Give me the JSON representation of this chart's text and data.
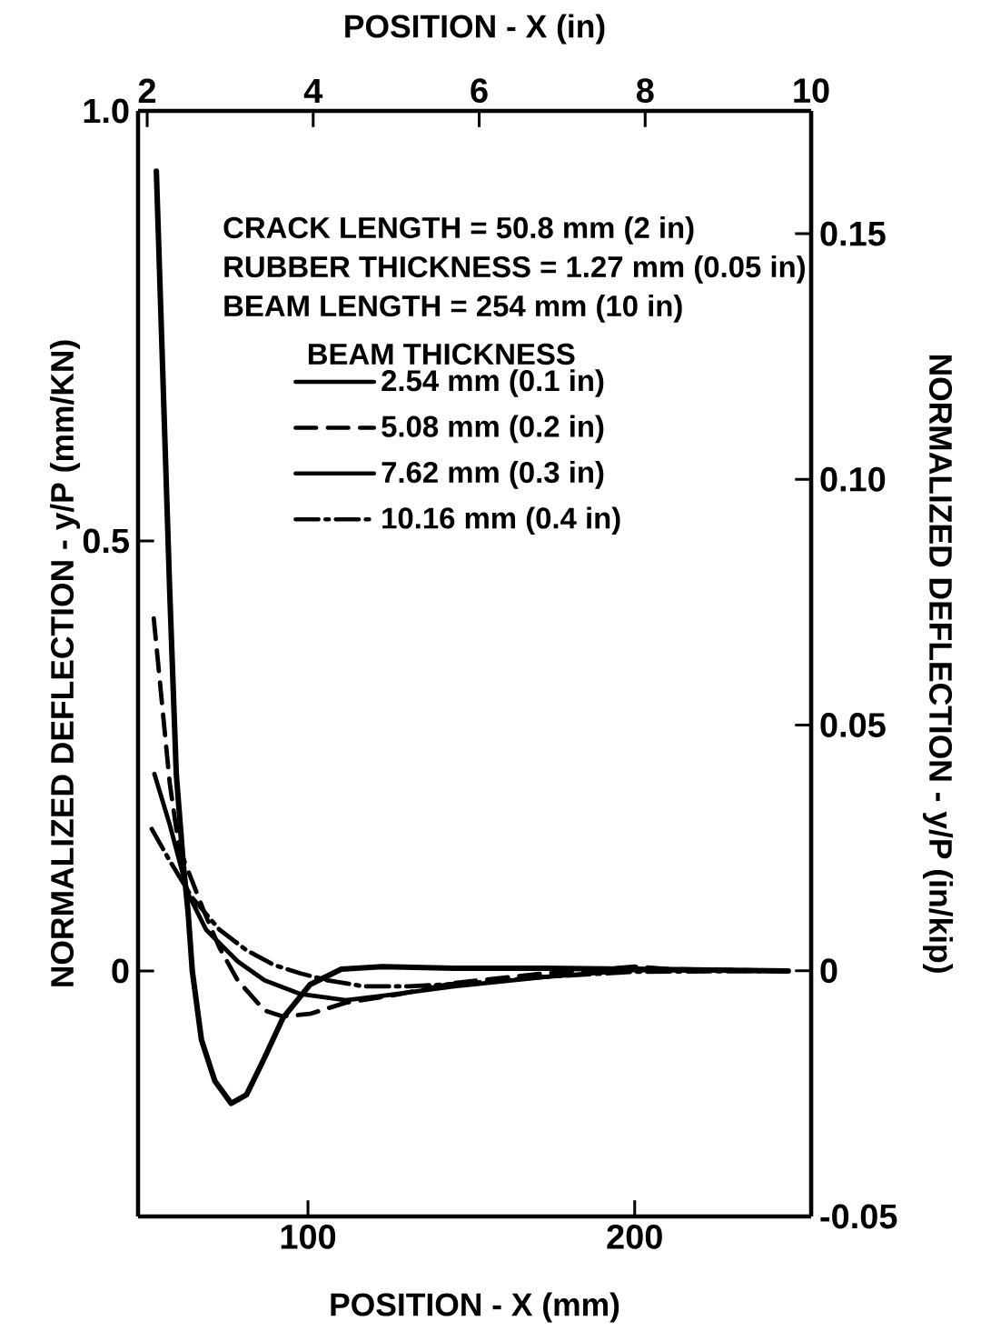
{
  "chart_data": {
    "type": "line",
    "xlabel": "POSITION - X (mm)",
    "x2label": "POSITION - X (in)",
    "ylabel": "NORMALIZED DEFLECTION - y/P (mm/KN)",
    "y2label": "NORMALIZED DEFLECTION - y/P (in/kip)",
    "legend_title": "BEAM THICKNESS",
    "annotations": [
      "CRACK LENGTH = 50.8 mm (2 in)",
      "RUBBER THICKNESS = 1.27 mm (0.05 in)",
      "BEAM LENGTH = 254 mm (10 in)"
    ],
    "xlim": [
      48,
      254
    ],
    "xticks": [
      100,
      200
    ],
    "x2lim": [
      1.89,
      10
    ],
    "x2ticks": [
      2,
      4,
      6,
      8,
      10
    ],
    "ylim": [
      -0.2855,
      1.0
    ],
    "yticks": [
      {
        "value": 0,
        "label": "0"
      },
      {
        "value": 0.5,
        "label": "0.5"
      },
      {
        "value": 1.0,
        "label": "1.0"
      }
    ],
    "y2lim": [
      -0.05,
      0.175
    ],
    "y2ticks": [
      {
        "value": -0.05,
        "label": "-0.05"
      },
      {
        "value": 0,
        "label": "0"
      },
      {
        "value": 0.05,
        "label": "0.05"
      },
      {
        "value": 0.1,
        "label": "0.10"
      },
      {
        "value": 0.15,
        "label": "0.15"
      }
    ],
    "legend": "top",
    "marker": "none",
    "series": [
      {
        "name": "2.54 mm (0.1 in)",
        "color": "#000000",
        "line_style": "solid",
        "x": [
          53.6,
          57.7,
          59.7,
          61.9,
          63.3,
          64.6,
          67.4,
          71.5,
          76.5,
          81.2,
          86.7,
          92.3,
          100.6,
          110.2,
          122.7,
          144.8,
          172,
          247
        ],
        "values": [
          0.93,
          0.44,
          0.229,
          0.122,
          0.069,
          0,
          -0.08,
          -0.128,
          -0.154,
          -0.144,
          -0.101,
          -0.055,
          -0.016,
          0.002,
          0.005,
          0.003,
          0.003,
          0
        ]
      },
      {
        "name": "5.08 mm (0.2 in)",
        "color": "#000000",
        "line_style": "dashed",
        "x": [
          52.8,
          55,
          57.7,
          60.5,
          68.2,
          72.9,
          78.5,
          86.7,
          92.3,
          100.6,
          111.6,
          128.2,
          144.8,
          172,
          200,
          211,
          247
        ],
        "values": [
          0.41,
          0.324,
          0.218,
          0.144,
          0.069,
          0.027,
          -0.011,
          -0.046,
          -0.053,
          -0.05,
          -0.037,
          -0.027,
          -0.014,
          -0.003,
          0.005,
          0.002,
          0
        ]
      },
      {
        "name": "7.62 mm (0.3 in)",
        "color": "#000000",
        "line_style": "solid",
        "x": [
          53,
          57.7,
          63.3,
          68.8,
          78.5,
          86.7,
          97.8,
          111.6,
          122.7,
          144.8,
          172.4,
          200,
          247
        ],
        "values": [
          0.229,
          0.17,
          0.09,
          0.048,
          0.011,
          -0.011,
          -0.027,
          -0.034,
          -0.029,
          -0.018,
          -0.007,
          0.001,
          0
        ]
      },
      {
        "name": "10.16 mm (0.4 in)",
        "color": "#000000",
        "line_style": "dashdot",
        "x": [
          52.2,
          57.7,
          64.6,
          72.9,
          81.2,
          89.5,
          97.8,
          106.1,
          117.1,
          130.9,
          150.3,
          172,
          200,
          247
        ],
        "values": [
          0.165,
          0.128,
          0.085,
          0.048,
          0.024,
          0.007,
          -0.003,
          -0.011,
          -0.018,
          -0.018,
          -0.014,
          -0.007,
          -0.001,
          0
        ]
      }
    ]
  }
}
